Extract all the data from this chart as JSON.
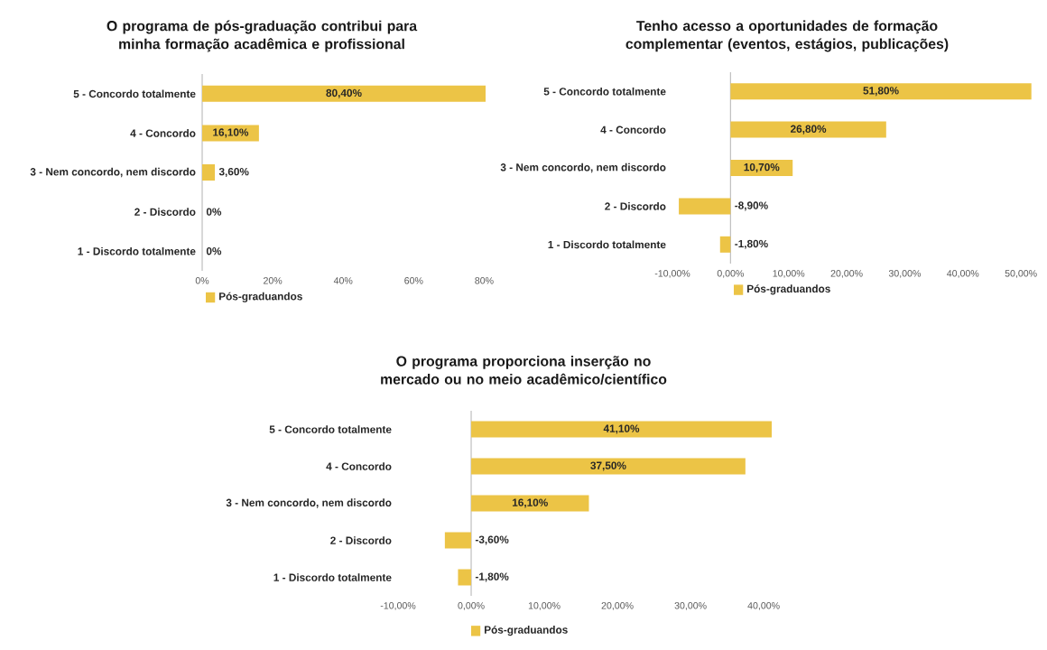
{
  "chart_data": [
    {
      "type": "bar",
      "orientation": "horizontal",
      "title": "O programa de pós-graduação contribui para minha formação acadêmica e profissional",
      "categories": [
        "5 - Concordo totalmente",
        "4 - Concordo",
        "3 - Nem concordo, nem discordo",
        "2 - Discordo",
        "1 - Discordo totalmente"
      ],
      "series": [
        {
          "name": "Pós-graduandos",
          "color": "#ecc446",
          "values": [
            80.4,
            16.1,
            3.6,
            0,
            0
          ],
          "value_labels": [
            "80,40%",
            "16,10%",
            "3,60%",
            "0%",
            "0%"
          ]
        }
      ],
      "xlim": [
        0,
        80.4
      ],
      "xticks": [
        {
          "value": 0,
          "label": "0%"
        },
        {
          "value": 20,
          "label": "20%"
        },
        {
          "value": 40,
          "label": "40%"
        },
        {
          "value": 60,
          "label": "60%"
        },
        {
          "value": 80,
          "label": "80%"
        }
      ],
      "legend": "bottom"
    },
    {
      "type": "bar",
      "orientation": "horizontal",
      "title": "Tenho acesso a oportunidades de formação complementar (eventos, estágios, publicações)",
      "categories": [
        "5 - Concordo totalmente",
        "4 - Concordo",
        "3 - Nem concordo, nem discordo",
        "2 - Discordo",
        "1 - Discordo totalmente"
      ],
      "series": [
        {
          "name": "Pós-graduandos",
          "color": "#ecc446",
          "values": [
            51.8,
            26.8,
            10.7,
            -8.9,
            -1.8
          ],
          "value_labels": [
            "51,80%",
            "26,80%",
            "10,70%",
            "-8,90%",
            "-1,80%"
          ]
        }
      ],
      "xlim": [
        -10,
        52
      ],
      "xticks": [
        {
          "value": -10,
          "label": "-10,00%"
        },
        {
          "value": 0,
          "label": "0,00%"
        },
        {
          "value": 10,
          "label": "10,00%"
        },
        {
          "value": 20,
          "label": "20,00%"
        },
        {
          "value": 30,
          "label": "30,00%"
        },
        {
          "value": 40,
          "label": "40,00%"
        },
        {
          "value": 50,
          "label": "50,00%"
        }
      ],
      "legend": "bottom"
    },
    {
      "type": "bar",
      "orientation": "horizontal",
      "title": "O programa proporciona inserção no mercado ou no meio acadêmico/científico",
      "categories": [
        "5 - Concordo totalmente",
        "4 - Concordo",
        "3 - Nem concordo, nem discordo",
        "2 - Discordo",
        "1 - Discordo totalmente"
      ],
      "series": [
        {
          "name": "Pós-graduandos",
          "color": "#ecc446",
          "values": [
            41.1,
            37.5,
            16.1,
            -3.6,
            -1.8
          ],
          "value_labels": [
            "41,10%",
            "37,50%",
            "16,10%",
            "-3,60%",
            "-1,80%"
          ]
        }
      ],
      "xlim": [
        -10,
        41.1
      ],
      "xticks": [
        {
          "value": -10,
          "label": "-10,00%"
        },
        {
          "value": 0,
          "label": "0,00%"
        },
        {
          "value": 10,
          "label": "10,00%"
        },
        {
          "value": 20,
          "label": "20,00%"
        },
        {
          "value": 30,
          "label": "30,00%"
        },
        {
          "value": 40,
          "label": "40,00%"
        }
      ],
      "legend": "bottom"
    }
  ]
}
